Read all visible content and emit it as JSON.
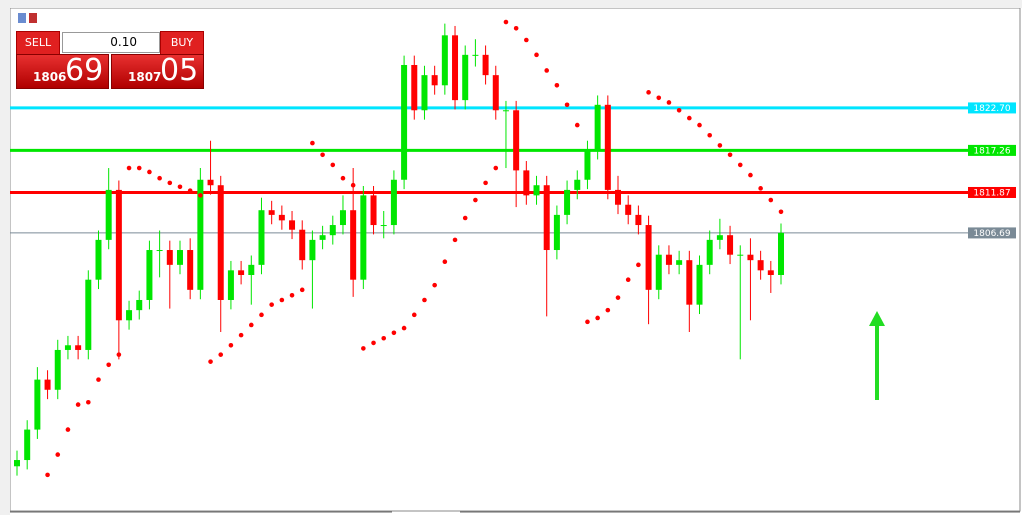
{
  "trade_panel": {
    "sell": "SELL",
    "buy": "BUY",
    "lot": "0.10",
    "bid_big": "1806",
    "bid_small": "69",
    "ask_big": "1807",
    "ask_small": "05"
  },
  "chart_data": {
    "type": "candlestick",
    "ylim": [
      1771.2,
      1835.5
    ],
    "bull_color": "#00e600",
    "bear_color": "#ff0000",
    "sar_color": "#ff0000",
    "levels": [
      {
        "value": 1822.7,
        "label": "1822.70",
        "color": "#00e5ff"
      },
      {
        "value": 1817.26,
        "label": "1817.26",
        "color": "#00e600"
      },
      {
        "value": 1811.87,
        "label": "1811.87",
        "color": "#ff0000"
      },
      {
        "value": 1806.69,
        "label": "1806.69",
        "color": "#7a8a96"
      }
    ],
    "open": [
      1776.8,
      1777.6,
      1781.5,
      1787.9,
      1786.6,
      1791.7,
      1792.3,
      1791.7,
      1800.7,
      1805.8,
      1812.2,
      1795.5,
      1796.8,
      1798.1,
      1804.5,
      1804.5,
      1802.6,
      1804.5,
      1799.4,
      1813.5,
      1812.8,
      1798.1,
      1801.9,
      1801.3,
      1802.6,
      1809.6,
      1809.0,
      1808.3,
      1807.1,
      1803.2,
      1805.8,
      1806.4,
      1807.7,
      1809.6,
      1800.7,
      1811.5,
      1807.7,
      1807.7,
      1813.5,
      1828.2,
      1822.4,
      1826.9,
      1825.6,
      1832.0,
      1823.7,
      1829.5,
      1829.5,
      1826.9,
      1822.4,
      1822.4,
      1814.7,
      1811.5,
      1812.8,
      1804.5,
      1809.0,
      1812.2,
      1813.5,
      1817.3,
      1823.1,
      1812.2,
      1810.3,
      1809.0,
      1807.7,
      1799.4,
      1803.9,
      1802.6,
      1803.2,
      1797.5,
      1802.6,
      1805.8,
      1806.4,
      1803.9,
      1803.9,
      1803.2,
      1801.9,
      1801.3
    ],
    "high": [
      1778.8,
      1782.7,
      1789.5,
      1789.1,
      1793.0,
      1793.5,
      1793.5,
      1801.9,
      1807.0,
      1815.0,
      1813.4,
      1798.0,
      1799.3,
      1805.7,
      1807.0,
      1805.7,
      1805.7,
      1806.0,
      1815.0,
      1818.5,
      1814.0,
      1803.1,
      1803.1,
      1803.8,
      1811.2,
      1810.8,
      1810.2,
      1809.5,
      1808.3,
      1807.0,
      1807.6,
      1808.9,
      1811.5,
      1815.0,
      1812.7,
      1812.7,
      1809.5,
      1814.7,
      1829.4,
      1829.4,
      1828.1,
      1828.1,
      1833.5,
      1833.2,
      1830.7,
      1831.5,
      1830.7,
      1828.1,
      1823.6,
      1823.6,
      1815.9,
      1814.0,
      1814.0,
      1810.2,
      1813.4,
      1814.7,
      1818.5,
      1824.3,
      1824.3,
      1814.0,
      1811.5,
      1810.2,
      1808.9,
      1805.1,
      1805.1,
      1804.4,
      1804.4,
      1803.8,
      1807.0,
      1808.5,
      1807.6,
      1805.1,
      1806.0,
      1804.4,
      1803.1,
      1807.9
    ],
    "low": [
      1775.6,
      1776.4,
      1780.3,
      1785.4,
      1785.4,
      1790.5,
      1790.5,
      1790.5,
      1799.5,
      1804.6,
      1790.5,
      1794.3,
      1795.6,
      1796.9,
      1801.0,
      1797.0,
      1801.4,
      1798.2,
      1798.2,
      1811.6,
      1794.0,
      1796.9,
      1800.1,
      1797.5,
      1801.4,
      1807.8,
      1807.1,
      1805.9,
      1802.0,
      1797.0,
      1804.6,
      1805.2,
      1806.5,
      1798.5,
      1799.5,
      1806.5,
      1806.0,
      1806.5,
      1812.3,
      1821.2,
      1821.2,
      1824.4,
      1824.4,
      1822.5,
      1822.5,
      1828.0,
      1825.7,
      1821.2,
      1815.0,
      1810.0,
      1810.3,
      1810.3,
      1796.0,
      1803.3,
      1807.8,
      1811.0,
      1812.3,
      1816.1,
      1811.0,
      1809.1,
      1807.8,
      1806.5,
      1795.0,
      1798.2,
      1801.4,
      1801.4,
      1794.0,
      1796.3,
      1801.4,
      1804.6,
      1802.7,
      1790.5,
      1795.5,
      1800.7,
      1799.0,
      1800.1
    ],
    "close": [
      1777.6,
      1781.5,
      1787.9,
      1786.6,
      1791.7,
      1792.3,
      1791.7,
      1800.7,
      1805.8,
      1812.2,
      1795.5,
      1796.8,
      1798.1,
      1804.5,
      1804.5,
      1802.6,
      1804.5,
      1799.4,
      1813.5,
      1812.8,
      1798.1,
      1801.9,
      1801.3,
      1802.6,
      1809.6,
      1809.0,
      1808.3,
      1807.1,
      1803.2,
      1805.8,
      1806.4,
      1807.7,
      1809.6,
      1800.7,
      1811.5,
      1807.7,
      1807.7,
      1813.5,
      1828.2,
      1822.4,
      1826.9,
      1825.6,
      1832.0,
      1823.7,
      1829.5,
      1829.5,
      1826.9,
      1822.4,
      1822.4,
      1814.7,
      1811.5,
      1812.8,
      1804.5,
      1809.0,
      1812.2,
      1813.5,
      1817.3,
      1823.1,
      1812.2,
      1810.3,
      1809.0,
      1807.7,
      1799.4,
      1803.9,
      1802.6,
      1803.2,
      1797.5,
      1802.6,
      1805.8,
      1806.4,
      1803.9,
      1803.9,
      1803.2,
      1801.9,
      1801.3,
      1806.7
    ],
    "sar": [
      null,
      null,
      null,
      1775.7,
      1778.3,
      1781.5,
      1784.7,
      1785.0,
      1787.9,
      1789.8,
      1791.1,
      1815.0,
      1815.0,
      1814.5,
      1813.7,
      1813.1,
      1812.6,
      1812.1,
      1811.5,
      1790.2,
      1791.1,
      1792.3,
      1793.6,
      1794.9,
      1796.2,
      1797.5,
      1798.1,
      1798.7,
      1799.4,
      1818.2,
      1816.7,
      1815.4,
      1813.7,
      1812.8,
      1791.9,
      1792.6,
      1793.2,
      1793.9,
      1794.5,
      1796.2,
      1798.1,
      1800.0,
      1803.0,
      1805.8,
      1808.6,
      1810.9,
      1813.1,
      1815.0,
      1833.7,
      1832.9,
      1831.4,
      1829.5,
      1827.5,
      1825.6,
      1823.1,
      1820.5,
      1795.3,
      1795.8,
      1796.8,
      1798.4,
      1800.7,
      1802.6,
      1824.7,
      1824.0,
      1823.4,
      1822.4,
      1821.4,
      1820.5,
      1819.2,
      1817.9,
      1816.7,
      1815.4,
      1814.1,
      1812.4,
      1810.9,
      1809.4
    ]
  }
}
